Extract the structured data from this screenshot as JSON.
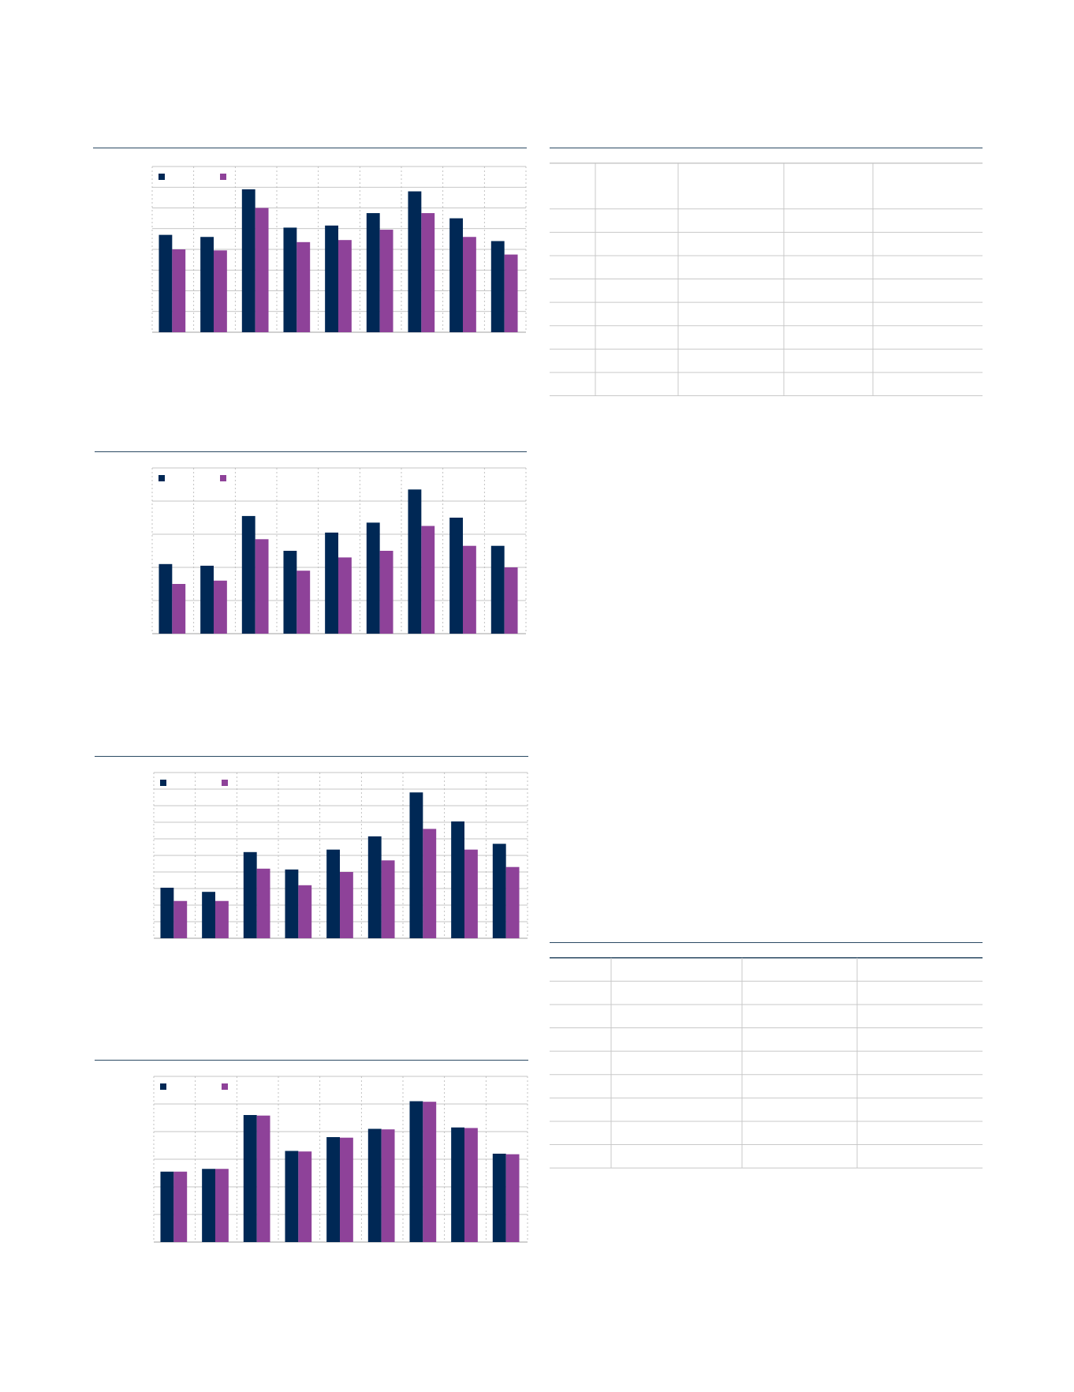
{
  "colors": {
    "series_a": "#002855",
    "series_b": "#8e4299",
    "rule": "#2b4a63",
    "grid": "#b3b3b3"
  },
  "chart_data": [
    {
      "type": "bar",
      "categories": [
        "",
        "",
        "",
        "",
        "",
        "",
        "",
        "",
        ""
      ],
      "ylim": [
        0,
        8
      ],
      "grid": true,
      "legend": "top-left",
      "title": "",
      "xlabel": "",
      "ylabel": "",
      "series": [
        {
          "values": [
            4.7,
            4.6,
            6.9,
            5.05,
            5.15,
            5.75,
            6.8,
            5.5,
            4.4
          ]
        },
        {
          "values": [
            4.0,
            3.95,
            6.0,
            4.35,
            4.45,
            4.95,
            5.75,
            4.6,
            3.75
          ]
        }
      ]
    },
    {
      "type": "bar",
      "categories": [
        "",
        "",
        "",
        "",
        "",
        "",
        "",
        "",
        ""
      ],
      "ylim": [
        0,
        5
      ],
      "grid": true,
      "legend": "top-left",
      "title": "",
      "xlabel": "",
      "ylabel": "",
      "series": [
        {
          "values": [
            2.1,
            2.05,
            3.55,
            2.5,
            3.05,
            3.35,
            4.35,
            3.5,
            2.65
          ]
        },
        {
          "values": [
            1.5,
            1.6,
            2.85,
            1.9,
            2.3,
            2.5,
            3.25,
            2.65,
            2.0
          ]
        }
      ]
    },
    {
      "type": "bar",
      "categories": [
        "",
        "",
        "",
        "",
        "",
        "",
        "",
        "",
        ""
      ],
      "ylim": [
        0,
        10
      ],
      "grid": true,
      "legend": "top-left",
      "title": "",
      "xlabel": "",
      "ylabel": "",
      "series": [
        {
          "values": [
            3.05,
            2.8,
            5.2,
            4.15,
            5.35,
            6.15,
            8.8,
            7.05,
            5.7
          ]
        },
        {
          "values": [
            2.25,
            2.25,
            4.2,
            3.2,
            4.0,
            4.7,
            6.6,
            5.35,
            4.3
          ]
        }
      ]
    },
    {
      "type": "bar",
      "categories": [
        "",
        "",
        "",
        "",
        "",
        "",
        "",
        "",
        ""
      ],
      "ylim": [
        0,
        6
      ],
      "grid": true,
      "legend": "top-left",
      "title": "",
      "xlabel": "",
      "ylabel": "",
      "series": [
        {
          "values": [
            2.55,
            2.65,
            4.6,
            3.3,
            3.8,
            4.1,
            5.1,
            4.15,
            3.2
          ]
        },
        {
          "values": [
            2.55,
            2.65,
            4.58,
            3.28,
            3.78,
            4.08,
            5.08,
            4.13,
            3.18
          ]
        }
      ]
    }
  ],
  "tables": [
    {
      "header": [
        "",
        "",
        "",
        "",
        ""
      ],
      "rows": [
        [
          "",
          "",
          "",
          "",
          ""
        ],
        [
          "",
          "",
          "",
          "",
          ""
        ],
        [
          "",
          "",
          "",
          "",
          ""
        ],
        [
          "",
          "",
          "",
          "",
          ""
        ],
        [
          "",
          "",
          "",
          "",
          ""
        ],
        [
          "",
          "",
          "",
          "",
          ""
        ],
        [
          "",
          "",
          "",
          "",
          ""
        ],
        [
          "",
          "",
          "",
          "",
          ""
        ]
      ]
    },
    {
      "header": [
        "",
        "",
        "",
        ""
      ],
      "rows": [
        [
          "",
          "",
          "",
          ""
        ],
        [
          "",
          "",
          "",
          ""
        ],
        [
          "",
          "",
          "",
          ""
        ],
        [
          "",
          "",
          "",
          ""
        ],
        [
          "",
          "",
          "",
          ""
        ],
        [
          "",
          "",
          "",
          ""
        ],
        [
          "",
          "",
          "",
          ""
        ],
        [
          "",
          "",
          "",
          ""
        ],
        [
          "",
          "",
          "",
          ""
        ]
      ]
    }
  ]
}
